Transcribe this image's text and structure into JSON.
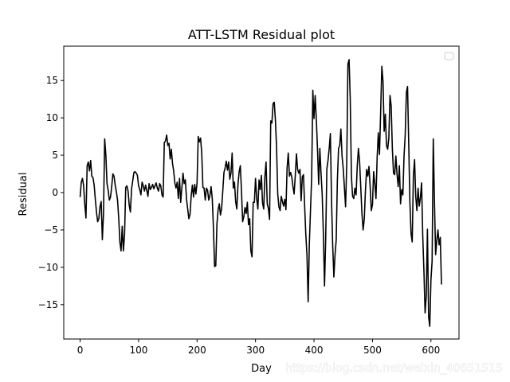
{
  "chart_data": {
    "type": "line",
    "title": "ATT-LSTM Residual plot",
    "xlabel": "Day",
    "ylabel": "Residual",
    "xlim": [
      -28,
      648
    ],
    "ylim": [
      -19.6,
      19.6
    ],
    "xticks": [
      0,
      100,
      200,
      300,
      400,
      500,
      600
    ],
    "yticks": [
      -15,
      -10,
      -5,
      0,
      5,
      10,
      15
    ],
    "tick_labels_x": [
      "0",
      "100",
      "200",
      "300",
      "400",
      "500",
      "600"
    ],
    "tick_labels_y": [
      "−15",
      "−10",
      "−5",
      "0",
      "5",
      "10",
      "15"
    ],
    "grid": false,
    "legend_placement": "top-right",
    "line_color": "#000000",
    "series": [
      {
        "points": [
          [
            0,
            -0.6
          ],
          [
            2,
            1.4
          ],
          [
            4,
            1.9
          ],
          [
            6,
            0.9
          ],
          [
            8,
            -1.6
          ],
          [
            10,
            -3.4
          ],
          [
            12,
            3.6
          ],
          [
            14,
            4.1
          ],
          [
            16,
            2.9
          ],
          [
            18,
            4.3
          ],
          [
            20,
            2.2
          ],
          [
            22,
            2.0
          ],
          [
            24,
            1.0
          ],
          [
            26,
            -0.9
          ],
          [
            28,
            -2.6
          ],
          [
            30,
            -3.9
          ],
          [
            32,
            -3.5
          ],
          [
            34,
            -1.9
          ],
          [
            36,
            -1.2
          ],
          [
            38,
            -6.3
          ],
          [
            40,
            -2.8
          ],
          [
            42,
            7.2
          ],
          [
            44,
            5.0
          ],
          [
            46,
            1.2
          ],
          [
            48,
            0.3
          ],
          [
            50,
            -1.0
          ],
          [
            52,
            -0.6
          ],
          [
            54,
            0.8
          ],
          [
            56,
            2.5
          ],
          [
            58,
            2.2
          ],
          [
            60,
            1.0
          ],
          [
            62,
            0.1
          ],
          [
            64,
            -1.0
          ],
          [
            66,
            -3.4
          ],
          [
            68,
            -6.6
          ],
          [
            70,
            -7.8
          ],
          [
            72,
            -4.5
          ],
          [
            74,
            -7.8
          ],
          [
            76,
            -5.6
          ],
          [
            78,
            0.7
          ],
          [
            80,
            0.9
          ],
          [
            82,
            0.2
          ],
          [
            84,
            -1.7
          ],
          [
            86,
            -2.6
          ],
          [
            88,
            0.5
          ],
          [
            90,
            1.6
          ],
          [
            92,
            2.7
          ],
          [
            94,
            2.8
          ],
          [
            96,
            2.6
          ],
          [
            98,
            2.3
          ],
          [
            100,
            0.9
          ],
          [
            102,
            0.4
          ],
          [
            104,
            -0.3
          ],
          [
            106,
            1.4
          ],
          [
            108,
            0.9
          ],
          [
            110,
            0.2
          ],
          [
            112,
            1.0
          ],
          [
            114,
            0.3
          ],
          [
            116,
            -0.5
          ],
          [
            118,
            1.2
          ],
          [
            120,
            0.4
          ],
          [
            122,
            0.7
          ],
          [
            124,
            1.1
          ],
          [
            126,
            0.5
          ],
          [
            128,
            0.9
          ],
          [
            130,
            1.3
          ],
          [
            132,
            0.6
          ],
          [
            134,
            0.2
          ],
          [
            136,
            1.2
          ],
          [
            138,
            0.9
          ],
          [
            140,
            -0.3
          ],
          [
            142,
            -0.6
          ],
          [
            144,
            6.7
          ],
          [
            146,
            6.9
          ],
          [
            148,
            7.7
          ],
          [
            150,
            6.3
          ],
          [
            152,
            6.6
          ],
          [
            154,
            4.5
          ],
          [
            156,
            5.8
          ],
          [
            158,
            3.9
          ],
          [
            160,
            2.9
          ],
          [
            162,
            1.3
          ],
          [
            164,
            0.6
          ],
          [
            166,
            1.4
          ],
          [
            168,
            -0.8
          ],
          [
            170,
            1.9
          ],
          [
            172,
            -1.3
          ],
          [
            174,
            0.6
          ],
          [
            176,
            2.6
          ],
          [
            178,
            1.2
          ],
          [
            180,
            1.7
          ],
          [
            182,
            -0.9
          ],
          [
            184,
            -2.2
          ],
          [
            186,
            -3.5
          ],
          [
            188,
            -2.9
          ],
          [
            190,
            -0.4
          ],
          [
            192,
            1.0
          ],
          [
            194,
            -0.6
          ],
          [
            196,
            1.1
          ],
          [
            198,
            -0.2
          ],
          [
            200,
            1.3
          ],
          [
            202,
            7.5
          ],
          [
            204,
            6.8
          ],
          [
            206,
            7.3
          ],
          [
            208,
            5.3
          ],
          [
            210,
            0.7
          ],
          [
            212,
            0.6
          ],
          [
            214,
            -1.0
          ],
          [
            216,
            0.6
          ],
          [
            218,
            0.3
          ],
          [
            220,
            -1.0
          ],
          [
            222,
            -0.4
          ],
          [
            224,
            0.8
          ],
          [
            226,
            -0.8
          ],
          [
            228,
            -4.7
          ],
          [
            230,
            -9.9
          ],
          [
            232,
            -9.8
          ],
          [
            234,
            -4.2
          ],
          [
            236,
            -2.3
          ],
          [
            238,
            -1.5
          ],
          [
            240,
            -3.0
          ],
          [
            242,
            -2.1
          ],
          [
            244,
            0.2
          ],
          [
            246,
            2.7
          ],
          [
            248,
            3.3
          ],
          [
            250,
            4.2
          ],
          [
            252,
            3.0
          ],
          [
            254,
            4.1
          ],
          [
            256,
            1.8
          ],
          [
            258,
            2.6
          ],
          [
            260,
            5.3
          ],
          [
            262,
            0.6
          ],
          [
            264,
            1.4
          ],
          [
            266,
            -1.2
          ],
          [
            268,
            -2.2
          ],
          [
            270,
            1.1
          ],
          [
            272,
            2.8
          ],
          [
            274,
            3.6
          ],
          [
            276,
            0.2
          ],
          [
            278,
            -3.9
          ],
          [
            280,
            -3.2
          ],
          [
            282,
            -2.0
          ],
          [
            284,
            -2.8
          ],
          [
            286,
            -1.3
          ],
          [
            288,
            -4.3
          ],
          [
            290,
            -3.5
          ],
          [
            292,
            -7.8
          ],
          [
            294,
            -8.6
          ],
          [
            296,
            -1.3
          ],
          [
            298,
            -1.3
          ],
          [
            300,
            1.9
          ],
          [
            302,
            -0.8
          ],
          [
            304,
            -2.2
          ],
          [
            306,
            1.7
          ],
          [
            308,
            0.4
          ],
          [
            310,
            2.3
          ],
          [
            312,
            -1.4
          ],
          [
            314,
            -2.2
          ],
          [
            316,
            2.1
          ],
          [
            318,
            4.1
          ],
          [
            320,
            -1.5
          ],
          [
            322,
            -2.1
          ],
          [
            324,
            -3.6
          ],
          [
            326,
            9.6
          ],
          [
            328,
            9.3
          ],
          [
            330,
            11.9
          ],
          [
            332,
            12.1
          ],
          [
            334,
            9.7
          ],
          [
            336,
            6.0
          ],
          [
            338,
            -0.2
          ],
          [
            340,
            -1.9
          ],
          [
            342,
            -2.4
          ],
          [
            344,
            -0.5
          ],
          [
            346,
            -1.2
          ],
          [
            348,
            -1.8
          ],
          [
            350,
            -0.9
          ],
          [
            352,
            -2.3
          ],
          [
            354,
            3.3
          ],
          [
            356,
            5.3
          ],
          [
            358,
            2.2
          ],
          [
            360,
            2.7
          ],
          [
            362,
            2.1
          ],
          [
            364,
            0.8
          ],
          [
            366,
            -0.2
          ],
          [
            368,
            2.3
          ],
          [
            370,
            5.2
          ],
          [
            372,
            3.1
          ],
          [
            374,
            2.6
          ],
          [
            376,
            3.1
          ],
          [
            378,
            -1.1
          ],
          [
            380,
            2.1
          ],
          [
            382,
            2.4
          ],
          [
            384,
            -1.8
          ],
          [
            386,
            -5.6
          ],
          [
            388,
            -8.4
          ],
          [
            390,
            -14.6
          ],
          [
            392,
            -6.9
          ],
          [
            394,
            -2.4
          ],
          [
            396,
            2.0
          ],
          [
            398,
            13.7
          ],
          [
            400,
            9.9
          ],
          [
            402,
            13.0
          ],
          [
            404,
            9.8
          ],
          [
            406,
            5.8
          ],
          [
            408,
            1.1
          ],
          [
            410,
            5.9
          ],
          [
            412,
            2.6
          ],
          [
            414,
            -0.2
          ],
          [
            416,
            -5.4
          ],
          [
            418,
            -12.5
          ],
          [
            420,
            -6.2
          ],
          [
            422,
            3.2
          ],
          [
            424,
            4.3
          ],
          [
            426,
            5.9
          ],
          [
            428,
            7.9
          ],
          [
            430,
            -1.1
          ],
          [
            432,
            -7.1
          ],
          [
            434,
            -11.3
          ],
          [
            436,
            -8.3
          ],
          [
            438,
            -6.3
          ],
          [
            440,
            1.7
          ],
          [
            442,
            5.9
          ],
          [
            444,
            6.3
          ],
          [
            446,
            8.5
          ],
          [
            448,
            4.9
          ],
          [
            450,
            3.2
          ],
          [
            452,
            0.7
          ],
          [
            454,
            -1.9
          ],
          [
            456,
            3.8
          ],
          [
            458,
            17.2
          ],
          [
            460,
            17.8
          ],
          [
            462,
            12.5
          ],
          [
            464,
            2.2
          ],
          [
            466,
            -0.5
          ],
          [
            468,
            -0.8
          ],
          [
            470,
            0.6
          ],
          [
            472,
            -0.3
          ],
          [
            474,
            3.6
          ],
          [
            476,
            5.9
          ],
          [
            478,
            4.1
          ],
          [
            480,
            0.7
          ],
          [
            482,
            -2.8
          ],
          [
            484,
            -5.0
          ],
          [
            486,
            -3.5
          ],
          [
            488,
            0.3
          ],
          [
            490,
            3.1
          ],
          [
            492,
            2.2
          ],
          [
            494,
            3.5
          ],
          [
            496,
            0.9
          ],
          [
            498,
            -2.4
          ],
          [
            500,
            -1.6
          ],
          [
            502,
            2.8
          ],
          [
            504,
            1.2
          ],
          [
            506,
            -0.8
          ],
          [
            508,
            4.7
          ],
          [
            510,
            8.0
          ],
          [
            512,
            5.1
          ],
          [
            514,
            10.8
          ],
          [
            516,
            16.9
          ],
          [
            518,
            14.9
          ],
          [
            520,
            8.2
          ],
          [
            522,
            10.5
          ],
          [
            524,
            6.3
          ],
          [
            526,
            5.8
          ],
          [
            528,
            7.3
          ],
          [
            530,
            13.0
          ],
          [
            532,
            11.6
          ],
          [
            534,
            5.9
          ],
          [
            536,
            2.6
          ],
          [
            538,
            2.4
          ],
          [
            540,
            4.9
          ],
          [
            542,
            2.5
          ],
          [
            544,
            0.8
          ],
          [
            546,
            3.6
          ],
          [
            548,
            -1.5
          ],
          [
            550,
            0.4
          ],
          [
            552,
            -0.3
          ],
          [
            554,
            4.9
          ],
          [
            556,
            7.7
          ],
          [
            558,
            13.4
          ],
          [
            560,
            14.2
          ],
          [
            562,
            6.6
          ],
          [
            564,
            -1.2
          ],
          [
            566,
            -5.5
          ],
          [
            568,
            -6.6
          ],
          [
            570,
            2.3
          ],
          [
            572,
            4.4
          ],
          [
            574,
            -0.5
          ],
          [
            576,
            -2.4
          ],
          [
            578,
            0.6
          ],
          [
            580,
            -1.8
          ],
          [
            582,
            -0.7
          ],
          [
            584,
            1.3
          ],
          [
            586,
            -5.8
          ],
          [
            588,
            -10.5
          ],
          [
            590,
            -16.1
          ],
          [
            592,
            -13.8
          ],
          [
            594,
            -4.9
          ],
          [
            596,
            -16.6
          ],
          [
            598,
            -17.9
          ],
          [
            600,
            -11.7
          ],
          [
            602,
            -9.2
          ],
          [
            604,
            7.2
          ],
          [
            606,
            -1.1
          ],
          [
            608,
            -8.3
          ],
          [
            610,
            -6.4
          ],
          [
            612,
            -5.0
          ],
          [
            614,
            -7.0
          ],
          [
            616,
            -6.0
          ],
          [
            618,
            -12.3
          ]
        ]
      }
    ]
  },
  "watermark": "https://blog.csdn.net/weixin_40651515"
}
